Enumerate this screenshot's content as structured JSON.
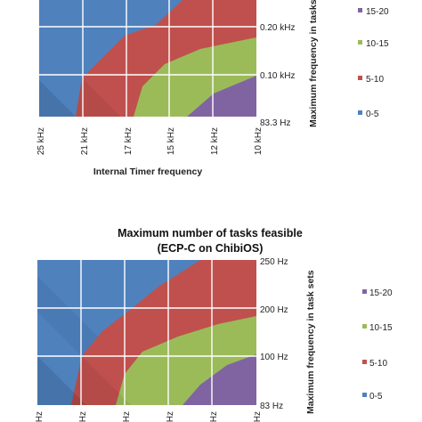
{
  "chart_data": [
    {
      "type": "area",
      "title": "",
      "xlabel": "Internal Timer frequency",
      "ylabel": "Maximum frequency  in tasks",
      "x_ticks": [
        "25 kHz",
        "21 kHz",
        "17 kHz",
        "15 kHz",
        "12 kHz",
        "10 kHz"
      ],
      "y_ticks": [
        "0.20 kHz",
        "0.10 kHz",
        "83.3 Hz"
      ],
      "series": [
        {
          "name": "0-5",
          "color": "#4f81bd"
        },
        {
          "name": "5-10",
          "color": "#c0504d"
        },
        {
          "name": "10-15",
          "color": "#9bbb59"
        },
        {
          "name": "15-20",
          "color": "#8064a2"
        }
      ],
      "legend_position": "right",
      "grid": true
    },
    {
      "type": "area",
      "title": "Maximum number of tasks feasible",
      "subtitle": "(ECP-C on ChibiOS)",
      "xlabel": "",
      "ylabel": "Maximum frequency  in task sets",
      "x_ticks": [
        "Hz",
        "Hz",
        "Hz",
        "Hz",
        "Hz",
        "Hz"
      ],
      "y_ticks": [
        "250 Hz",
        "200 Hz",
        "100 Hz",
        "83 Hz"
      ],
      "series": [
        {
          "name": "15-20",
          "color": "#8064a2"
        },
        {
          "name": "10-15",
          "color": "#9bbb59"
        },
        {
          "name": "5-10",
          "color": "#c0504d"
        },
        {
          "name": "0-5",
          "color": "#4f81bd"
        }
      ],
      "legend_position": "right",
      "grid": true
    }
  ]
}
